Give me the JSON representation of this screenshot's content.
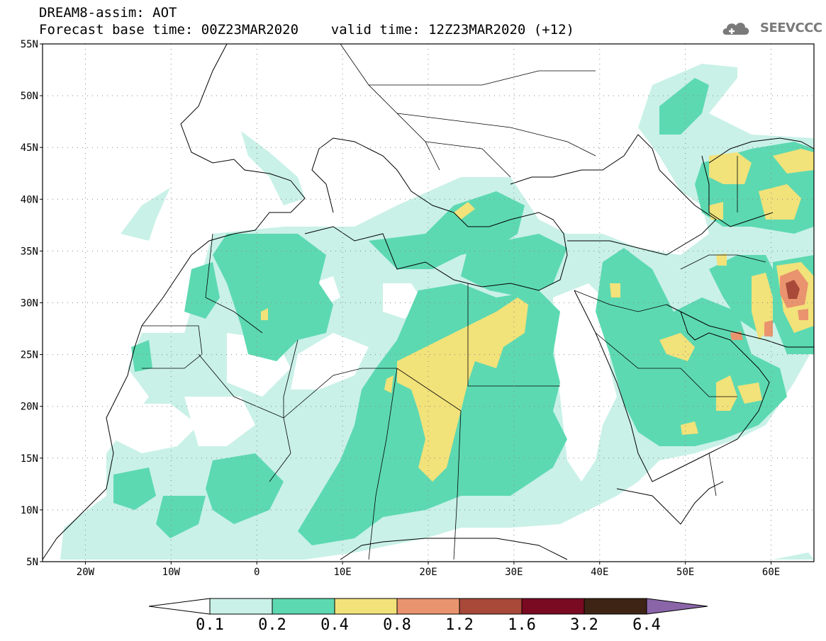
{
  "header": {
    "line1": "DREAM8-assim: AOT",
    "line2": "Forecast base time: 00Z23MAR2020    valid time: 12Z23MAR2020 (+12)",
    "logo_text": "SEEVCCC"
  },
  "map": {
    "lon_range": [
      -25,
      65
    ],
    "lat_range": [
      5,
      55
    ],
    "lat_labels": [
      "55N",
      "50N",
      "45N",
      "40N",
      "35N",
      "30N",
      "25N",
      "20N",
      "15N",
      "10N",
      "5N"
    ],
    "lon_labels": [
      "20W",
      "10W",
      "0",
      "10E",
      "20E",
      "30E",
      "40E",
      "50E",
      "60E"
    ],
    "grid": true
  },
  "legend": {
    "levels": [
      "0.1",
      "0.2",
      "0.4",
      "0.8",
      "1.2",
      "1.6",
      "3.2",
      "6.4"
    ],
    "colors": [
      "#ffffff",
      "#c9f1e7",
      "#5dd9b1",
      "#f2e27a",
      "#e9946e",
      "#a8493a",
      "#7a0a22",
      "#3e2414",
      "#8a66a8"
    ]
  }
}
